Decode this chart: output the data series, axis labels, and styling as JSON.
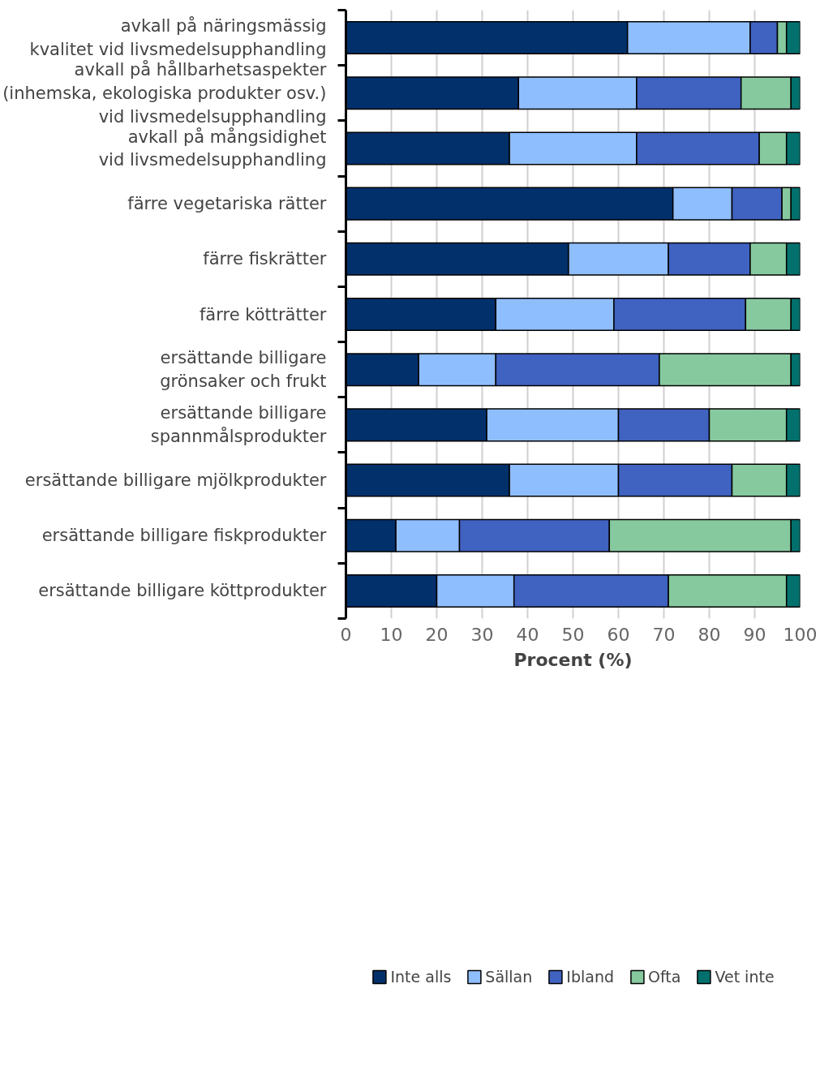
{
  "chart_data": {
    "type": "bar",
    "orientation": "horizontal",
    "stacked": true,
    "xlabel": "Procent (%)",
    "categories": [
      "avkall på näringsmässig\nkvalitet vid livsmedelsupphandling",
      "avkall på hållbarhetsaspekter\n(inhemska, ekologiska produkter osv.)\nvid livsmedelsupphandling",
      "avkall på mångsidighet\nvid livsmedelsupphandling",
      "färre vegetariska rätter",
      "färre fiskrätter",
      "färre kötträtter",
      "ersättande billigare\ngrönsaker och frukt",
      "ersättande billigare\nspannmålsprodukter",
      "ersättande billigare mjölkprodukter",
      "ersättande billigare fiskprodukter",
      "ersättande billigare köttprodukter"
    ],
    "series": [
      {
        "name": "Inte alls",
        "color": "#02306a",
        "values": [
          62,
          38,
          36,
          72,
          49,
          33,
          16,
          31,
          36,
          11,
          20
        ]
      },
      {
        "name": "Sällan",
        "color": "#8fbefe",
        "values": [
          27,
          26,
          28,
          13,
          22,
          26,
          17,
          29,
          24,
          14,
          17
        ]
      },
      {
        "name": "Ibland",
        "color": "#4062c0",
        "values": [
          6,
          23,
          27,
          11,
          18,
          29,
          36,
          20,
          25,
          33,
          34
        ]
      },
      {
        "name": "Ofta",
        "color": "#86c99f",
        "values": [
          2,
          11,
          6,
          2,
          8,
          10,
          29,
          17,
          12,
          40,
          26
        ]
      },
      {
        "name": "Vet inte",
        "color": "#02716e",
        "values": [
          3,
          2,
          3,
          2,
          3,
          2,
          2,
          3,
          3,
          2,
          3
        ]
      }
    ],
    "xlim": [
      0,
      100
    ],
    "xticks": [
      0,
      10,
      20,
      30,
      40,
      50,
      60,
      70,
      80,
      90,
      100
    ],
    "grid": "x",
    "legend": "bottom"
  }
}
